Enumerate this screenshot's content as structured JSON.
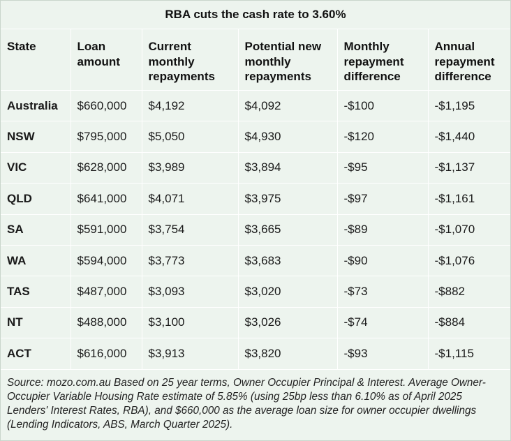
{
  "title": "RBA cuts the cash rate to 3.60%",
  "headers": [
    "State",
    "Loan amount",
    "Current monthly repayments",
    "Potential new monthly repayments",
    "Monthly repayment difference",
    "Annual repayment difference"
  ],
  "rows": [
    [
      "Australia",
      "$660,000",
      "$4,192",
      "$4,092",
      "-$100",
      "-$1,195"
    ],
    [
      "NSW",
      "$795,000",
      "$5,050",
      "$4,930",
      "-$120",
      "-$1,440"
    ],
    [
      "VIC",
      "$628,000",
      "$3,989",
      "$3,894",
      "-$95",
      "-$1,137"
    ],
    [
      "QLD",
      "$641,000",
      "$4,071",
      "$3,975",
      "-$97",
      "-$1,161"
    ],
    [
      "SA",
      "$591,000",
      "$3,754",
      "$3,665",
      "-$89",
      "-$1,070"
    ],
    [
      "WA",
      "$594,000",
      "$3,773",
      "$3,683",
      "-$90",
      "-$1,076"
    ],
    [
      "TAS",
      "$487,000",
      "$3,093",
      "$3,020",
      "-$73",
      "-$882"
    ],
    [
      "NT",
      "$488,000",
      "$3,100",
      "$3,026",
      "-$74",
      "-$884"
    ],
    [
      "ACT",
      "$616,000",
      "$3,913",
      "$3,820",
      "-$93",
      "-$1,115"
    ]
  ],
  "source": "Source: mozo.com.au Based on 25 year terms, Owner Occupier Principal & Interest. Average Owner-Occupier Variable Housing Rate estimate of 5.85% (using 25bp less than 6.10% as of April 2025 Lenders' Interest Rates, RBA), and $660,000 as the average loan size for owner occupier dwellings (Lending Indicators, ABS, March Quarter 2025).",
  "colors": {
    "background": "#edf4ee",
    "gridline": "#ffffff",
    "text": "#1a1a1a"
  }
}
